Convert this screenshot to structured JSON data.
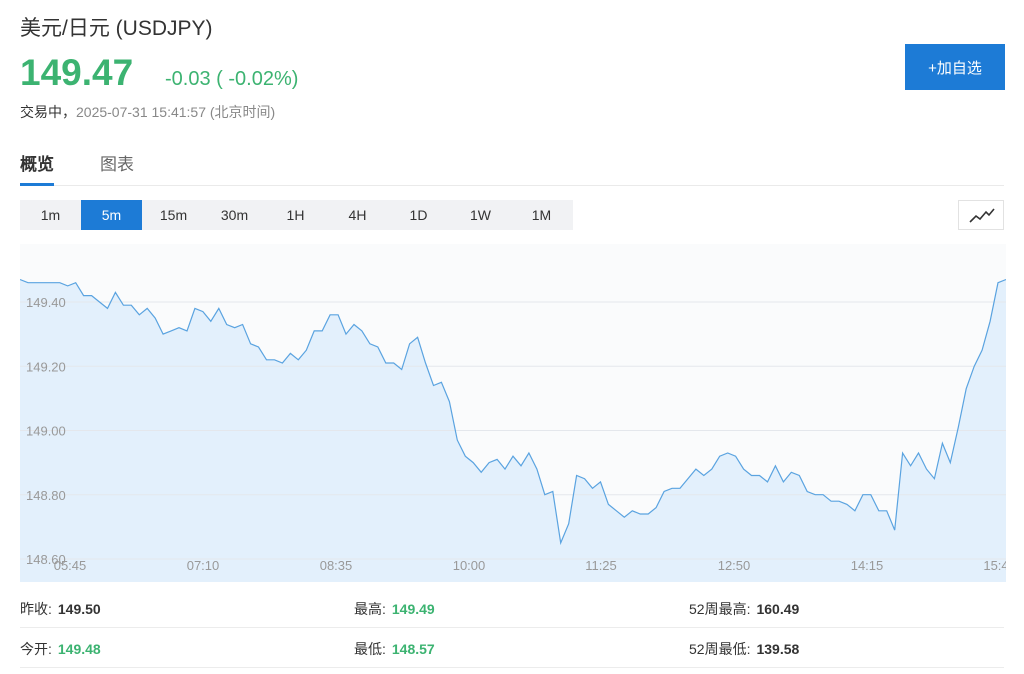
{
  "header": {
    "title": "美元/日元 (USDJPY)",
    "price": "149.47",
    "change": "-0.03 ( -0.02%)",
    "status": "交易中，",
    "timestamp": "2025-07-31 15:41:57 (北京时间)",
    "add_button": "+加自选"
  },
  "tabs": [
    {
      "label": "概览",
      "active": true
    },
    {
      "label": "图表",
      "active": false
    }
  ],
  "periods": [
    {
      "label": "1m",
      "active": false
    },
    {
      "label": "5m",
      "active": true
    },
    {
      "label": "15m",
      "active": false
    },
    {
      "label": "30m",
      "active": false
    },
    {
      "label": "1H",
      "active": false
    },
    {
      "label": "4H",
      "active": false
    },
    {
      "label": "1D",
      "active": false
    },
    {
      "label": "1W",
      "active": false
    },
    {
      "label": "1M",
      "active": false
    }
  ],
  "chart_type_icon": "line-chart-icon",
  "colors": {
    "up": "#3cb371",
    "accent": "#1d7bd6",
    "line": "#5aa3e0",
    "area": "#e3f0fc"
  },
  "chart_data": {
    "type": "area",
    "x_ticks": [
      "05:45",
      "07:10",
      "08:35",
      "10:00",
      "11:25",
      "12:50",
      "14:15",
      "15:4"
    ],
    "y_ticks": [
      "148.60",
      "148.80",
      "149.00",
      "149.20",
      "149.40"
    ],
    "ylim": [
      148.6,
      149.5
    ],
    "grid": true,
    "values": [
      149.47,
      149.46,
      149.46,
      149.46,
      149.46,
      149.46,
      149.45,
      149.46,
      149.42,
      149.42,
      149.4,
      149.38,
      149.43,
      149.39,
      149.39,
      149.36,
      149.38,
      149.35,
      149.3,
      149.31,
      149.32,
      149.31,
      149.38,
      149.37,
      149.34,
      149.38,
      149.33,
      149.32,
      149.33,
      149.27,
      149.26,
      149.22,
      149.22,
      149.21,
      149.24,
      149.22,
      149.25,
      149.31,
      149.31,
      149.36,
      149.36,
      149.3,
      149.33,
      149.31,
      149.27,
      149.26,
      149.21,
      149.21,
      149.19,
      149.27,
      149.29,
      149.21,
      149.14,
      149.15,
      149.09,
      148.97,
      148.92,
      148.9,
      148.87,
      148.9,
      148.91,
      148.88,
      148.92,
      148.89,
      148.93,
      148.88,
      148.8,
      148.81,
      148.65,
      148.71,
      148.86,
      148.85,
      148.82,
      148.84,
      148.77,
      148.75,
      148.73,
      148.75,
      148.74,
      148.74,
      148.76,
      148.81,
      148.82,
      148.82,
      148.85,
      148.88,
      148.86,
      148.88,
      148.92,
      148.93,
      148.92,
      148.88,
      148.86,
      148.86,
      148.84,
      148.89,
      148.84,
      148.87,
      148.86,
      148.81,
      148.8,
      148.8,
      148.78,
      148.78,
      148.77,
      148.75,
      148.8,
      148.8,
      148.75,
      148.75,
      148.69,
      148.93,
      148.89,
      148.93,
      148.88,
      148.85,
      148.96,
      148.9,
      149.01,
      149.13,
      149.2,
      149.25,
      149.34,
      149.46,
      149.47
    ]
  },
  "stats": {
    "prev_close_label": "昨收:",
    "prev_close": "149.50",
    "high_label": "最高:",
    "high": "149.49",
    "w52_high_label": "52周最高:",
    "w52_high": "160.49",
    "open_label": "今开:",
    "open": "149.48",
    "low_label": "最低:",
    "low": "148.57",
    "w52_low_label": "52周最低:",
    "w52_low": "139.58"
  }
}
